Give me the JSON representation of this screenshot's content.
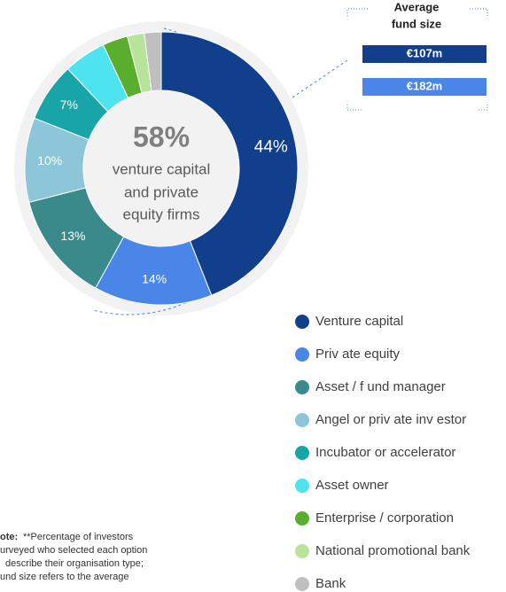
{
  "chart_data": {
    "type": "donut",
    "categories": [
      "Venture capital",
      "Priv ate equity",
      "Asset / f und manager",
      "Angel or priv ate inv estor",
      "Incubator or accelerator",
      "Asset owner",
      "Enterprise / corporation",
      "National promotional bank",
      "Bank"
    ],
    "values": [
      44,
      14,
      13,
      10,
      7,
      5,
      3,
      2,
      2
    ],
    "value_labels": [
      "44%",
      "14%",
      "13%",
      "10%",
      "7%",
      null,
      null,
      null,
      null
    ],
    "colors": [
      "#123f8c",
      "#4a86e8",
      "#3a8a8c",
      "#8cc6d8",
      "#17a5a8",
      "#4de3ef",
      "#5aae2e",
      "#b7e39a",
      "#bfbfbf"
    ],
    "center_value": "58%",
    "center_text": [
      "venture capital",
      "and private",
      "equity firms"
    ],
    "callout": {
      "title": [
        "Average",
        "fund size"
      ],
      "items": [
        "€107m",
        "€182m"
      ]
    },
    "note": {
      "label": "ote:",
      "lines": [
        "**Percentage  of  investors",
        "urveyed  who  selected  each  option",
        "describe  their  organisation  type;",
        "und  size  refers  to the  average"
      ]
    }
  }
}
